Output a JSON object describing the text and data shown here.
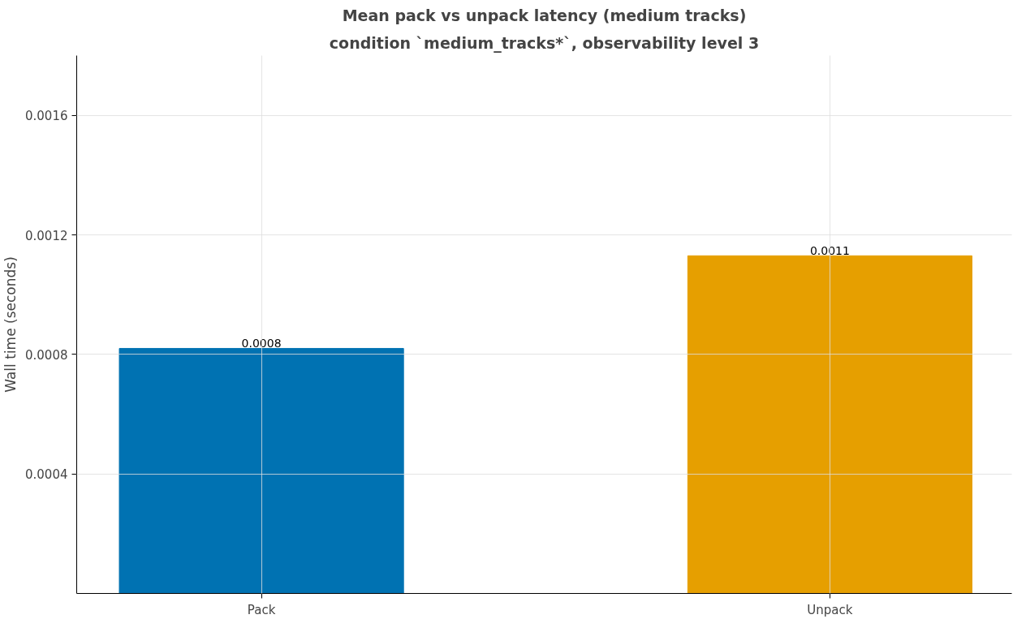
{
  "chart_data": {
    "type": "bar",
    "title": "Mean pack vs unpack latency (medium tracks)",
    "subtitle": "condition `medium_tracks*`, observability level 3",
    "ylabel": "Wall time (seconds)",
    "categories": [
      "Pack",
      "Unpack"
    ],
    "values": [
      0.00082,
      0.00113
    ],
    "colors": [
      "#0072b2",
      "#e69f00"
    ],
    "value_labels": [
      "0.0008",
      "0.0011"
    ],
    "ylim": [
      0,
      0.0018
    ],
    "yticks": [
      0.0004,
      0.0008,
      0.0012,
      0.0016
    ],
    "grid": true
  }
}
